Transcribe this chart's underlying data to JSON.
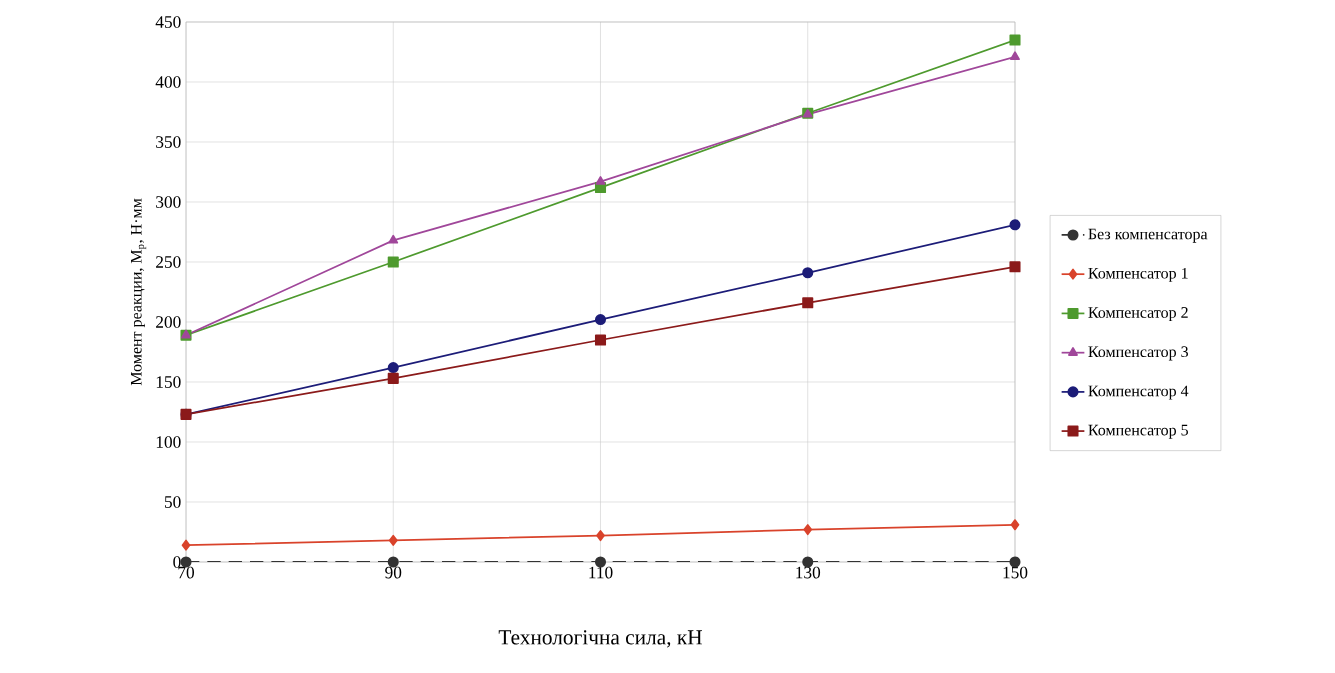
{
  "chart_data": {
    "type": "line",
    "xlabel": "Технологічна сила, кН",
    "ylabel": "Момент реакции, М$_{р}$, Н·мм",
    "x": [
      70,
      90,
      110,
      130,
      150
    ],
    "series": [
      {
        "name": "Без компенсатора",
        "color": "#333333",
        "marker": "circle",
        "line_style": "dashed",
        "values": [
          0,
          0,
          0,
          0,
          0
        ]
      },
      {
        "name": "Компенсатор 1",
        "color": "#d9432b",
        "marker": "diamond",
        "values": [
          14,
          18,
          22,
          27,
          31
        ]
      },
      {
        "name": "Компенсатор 2",
        "color": "#4e9a2e",
        "marker": "square",
        "values": [
          189,
          250,
          312,
          374,
          435
        ]
      },
      {
        "name": "Компенсатор 3",
        "color": "#a0479a",
        "marker": "triangle",
        "values": [
          189,
          268,
          317,
          373,
          421
        ]
      },
      {
        "name": "Компенсатор 4",
        "color": "#1c1c78",
        "marker": "circle",
        "values": [
          123,
          162,
          202,
          241,
          281
        ]
      },
      {
        "name": "Компенсатор 5",
        "color": "#8b1a1a",
        "marker": "square",
        "values": [
          123,
          153,
          185,
          216,
          246
        ]
      }
    ],
    "xlim": [
      70,
      150
    ],
    "xticks": [
      70,
      90,
      110,
      130,
      150
    ],
    "ylim": [
      0,
      450
    ],
    "yticks": [
      0,
      50,
      100,
      150,
      200,
      250,
      300,
      350,
      400,
      450
    ],
    "grid": true,
    "legend": "right",
    "line_style": "solid"
  }
}
